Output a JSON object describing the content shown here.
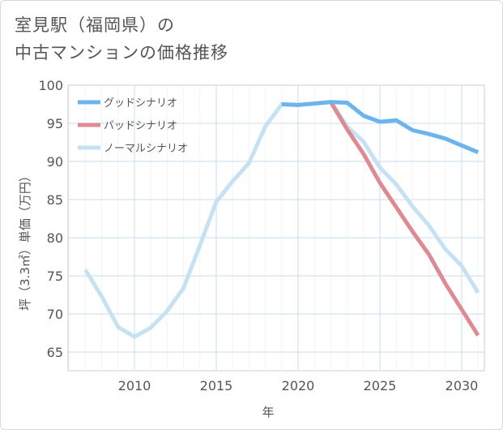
{
  "title": {
    "line1": "室見駅（福岡県）の",
    "line2": "中古マンションの価格推移"
  },
  "chart_data": {
    "type": "line",
    "xlabel": "年",
    "ylabel": "坪（3.3㎡）単価（万円）",
    "xlim": [
      2006,
      2031
    ],
    "ylim": [
      62.5,
      100
    ],
    "x_ticks": [
      2010,
      2015,
      2020,
      2025,
      2030
    ],
    "y_ticks": [
      65,
      70,
      75,
      80,
      85,
      90,
      95,
      100
    ],
    "grid": true,
    "legend_position": "top-left",
    "series": [
      {
        "name": "グッドシナリオ",
        "color": "#6bb4ee",
        "x": [
          2019,
          2020,
          2021,
          2022,
          2023,
          2024,
          2025,
          2026,
          2027,
          2028,
          2029,
          2030,
          2031
        ],
        "y": [
          97.5,
          97.4,
          97.6,
          97.8,
          97.7,
          96.0,
          95.2,
          95.4,
          94.1,
          93.6,
          93.0,
          92.1,
          91.2
        ]
      },
      {
        "name": "バッドシナリオ",
        "color": "#dd8a92",
        "x": [
          2022,
          2023,
          2024,
          2025,
          2026,
          2027,
          2028,
          2029,
          2030,
          2031
        ],
        "y": [
          97.8,
          94.2,
          91.0,
          87.2,
          84.0,
          80.8,
          77.8,
          74.0,
          70.6,
          67.2
        ]
      },
      {
        "name": "ノーマルシナリオ",
        "color": "#c6e2f2",
        "x": [
          2007,
          2008,
          2009,
          2010,
          2011,
          2012,
          2013,
          2014,
          2015,
          2016,
          2017,
          2018,
          2019,
          2020,
          2021,
          2022,
          2023,
          2024,
          2025,
          2026,
          2027,
          2028,
          2029,
          2030,
          2031
        ],
        "y": [
          75.8,
          72.3,
          68.3,
          67.0,
          68.2,
          70.4,
          73.4,
          79.0,
          84.7,
          87.4,
          89.8,
          94.6,
          97.5,
          97.4,
          97.6,
          97.8,
          94.6,
          92.6,
          89.2,
          87.0,
          84.1,
          81.6,
          78.5,
          76.3,
          72.8
        ]
      }
    ]
  }
}
